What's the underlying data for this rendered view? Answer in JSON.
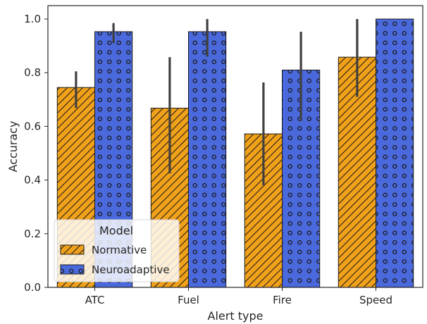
{
  "chart_data": {
    "type": "bar",
    "categories": [
      "ATC",
      "Fuel",
      "Fire",
      "Speed"
    ],
    "series": [
      {
        "name": "Normative",
        "values": [
          0.745,
          0.668,
          0.572,
          0.858
        ],
        "ci_low": [
          0.668,
          0.425,
          0.381,
          0.71
        ],
        "ci_high": [
          0.805,
          0.858,
          0.764,
          1.0
        ],
        "color": "#f0a119",
        "hatch": "diagonal"
      },
      {
        "name": "Neuroadaptive",
        "values": [
          0.953,
          0.953,
          0.81,
          1.0
        ],
        "ci_low": [
          0.91,
          0.86,
          0.62,
          1.0
        ],
        "ci_high": [
          0.985,
          1.0,
          0.953,
          1.0
        ],
        "color": "#4a69dc",
        "hatch": "circles"
      }
    ],
    "xlabel": "Alert type",
    "ylabel": "Accuracy",
    "ylim": [
      0,
      1.05
    ],
    "yticks": [
      "0.0",
      "0.2",
      "0.4",
      "0.6",
      "0.8",
      "1.0"
    ],
    "grid": false,
    "legend": {
      "title": "Model",
      "placement": "lower-left"
    }
  }
}
